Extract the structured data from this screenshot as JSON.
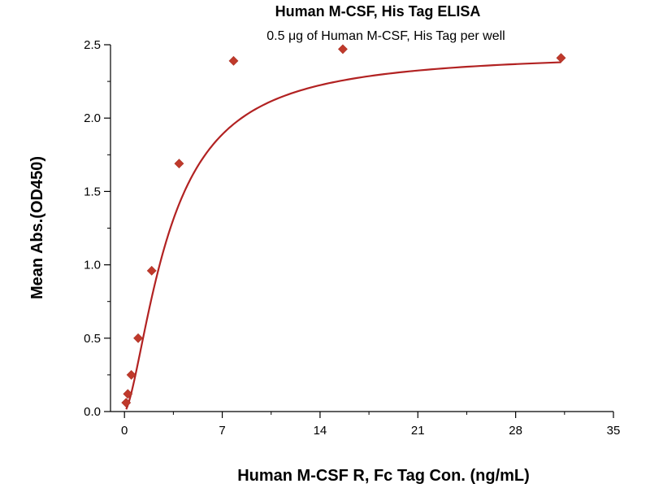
{
  "chart_data": {
    "type": "scatter",
    "title": "Human M-CSF, His Tag ELISA",
    "subtitle": "0.5 μg of Human M-CSF, His Tag per well",
    "xlabel": "Human M-CSF R, Fc Tag Con. (ng/mL)",
    "ylabel": "Mean Abs.(OD450)",
    "xlim": [
      -1,
      35
    ],
    "ylim": [
      0,
      2.5
    ],
    "x_ticks": [
      0,
      7,
      14,
      21,
      28,
      35
    ],
    "x_tick_labels": [
      "0",
      "7",
      "14",
      "21",
      "28",
      "35"
    ],
    "y_ticks": [
      0,
      0.5,
      1.0,
      1.5,
      2.0,
      2.5
    ],
    "y_tick_labels": [
      "0.0",
      "0.5",
      "1.0",
      "1.5",
      "2.0",
      "2.5"
    ],
    "grid": false,
    "colors": {
      "marker": "#c0392b",
      "curve": "#b22222",
      "axis": "#000000"
    },
    "series": [
      {
        "x": [
          0.12,
          0.24,
          0.49,
          0.98,
          1.95,
          3.91,
          7.81,
          15.63,
          31.25
        ],
        "y": [
          0.06,
          0.12,
          0.25,
          0.5,
          0.96,
          1.69,
          2.39,
          2.47,
          2.41
        ],
        "fit": "4-parameter logistic"
      }
    ]
  }
}
